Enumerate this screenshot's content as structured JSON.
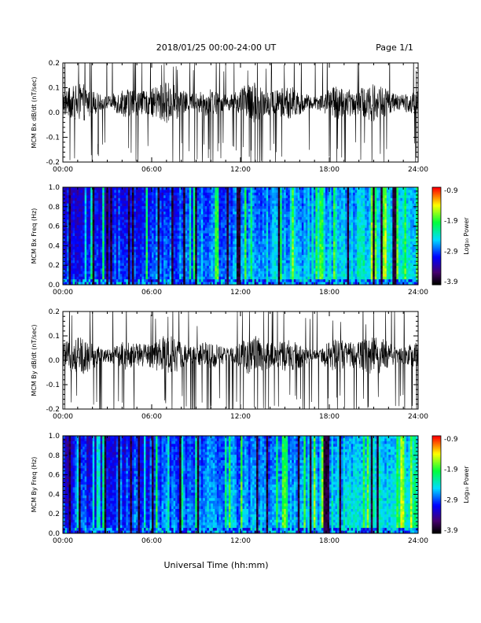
{
  "header": {
    "title": "2018/01/25  00:00-24:00 UT",
    "page": "Page 1/1"
  },
  "xaxis_title": "Universal Time (hh:mm)",
  "colorbar": {
    "label": "Log₁₀ Power",
    "ticks": [
      "-0.9",
      "-1.9",
      "-2.9",
      "-3.9"
    ]
  },
  "chart_data": [
    {
      "type": "line",
      "ylabel": "MCM Bx dB/dt (nT/sec)",
      "xlim": [
        0,
        24
      ],
      "ylim": [
        -0.2,
        0.2
      ],
      "x_ticks": [
        "00:00",
        "06:00",
        "12:00",
        "18:00",
        "24:00"
      ],
      "y_ticks": [
        "0.2",
        "0.1",
        "0.0",
        "-0.1",
        "-0.2"
      ],
      "center": 0.04,
      "series": [
        {
          "values_note": "dense oscillatory signal centered near 0.04 nT/sec with frequent spikes reaching the ±0.2 limits"
        }
      ]
    },
    {
      "type": "heatmap",
      "ylabel": "MCM Bx Freq (Hz)",
      "xlim": [
        0,
        24
      ],
      "ylim": [
        0,
        1.0
      ],
      "x_ticks": [
        "00:00",
        "06:00",
        "12:00",
        "18:00",
        "24:00"
      ],
      "y_ticks": [
        "1.0",
        "0.8",
        "0.6",
        "0.4",
        "0.2",
        "0.0"
      ],
      "color_range": [
        -3.9,
        -0.9
      ],
      "colorbar_label": "Log₁₀ Power"
    },
    {
      "type": "line",
      "ylabel": "MCM By dB/dt (nT/sec)",
      "xlim": [
        0,
        24
      ],
      "ylim": [
        -0.2,
        0.2
      ],
      "x_ticks": [
        "00:00",
        "06:00",
        "12:00",
        "18:00",
        "24:00"
      ],
      "y_ticks": [
        "0.2",
        "0.1",
        "0.0",
        "-0.1",
        "-0.2"
      ],
      "center": 0.02,
      "series": [
        {
          "values_note": "dense oscillatory signal centered near 0.02 nT/sec with frequent spikes reaching the ±0.2 limits"
        }
      ]
    },
    {
      "type": "heatmap",
      "ylabel": "MCM By Freq (Hz)",
      "xlim": [
        0,
        24
      ],
      "ylim": [
        0,
        1.0
      ],
      "x_ticks": [
        "00:00",
        "06:00",
        "12:00",
        "18:00",
        "24:00"
      ],
      "y_ticks": [
        "1.0",
        "0.8",
        "0.6",
        "0.4",
        "0.2",
        "0.0"
      ],
      "color_range": [
        -3.9,
        -0.9
      ],
      "colorbar_label": "Log₁₀ Power"
    }
  ]
}
